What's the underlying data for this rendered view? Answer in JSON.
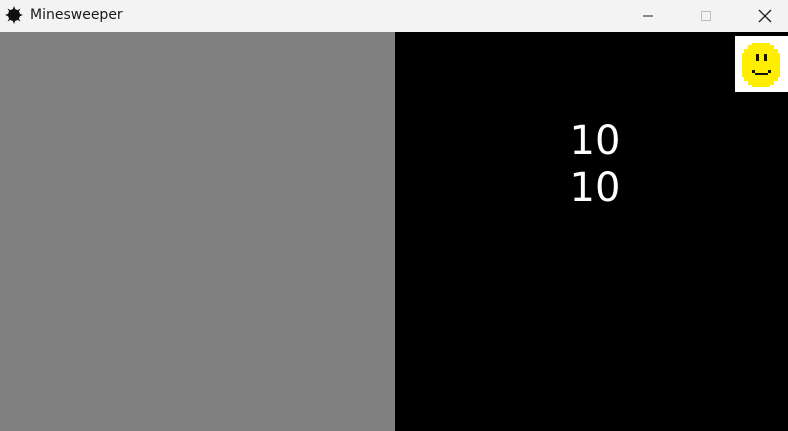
{
  "window": {
    "title": "Minesweeper",
    "icon": "mine-icon",
    "controls": [
      "minimize-icon",
      "maximize-icon",
      "close-icon"
    ]
  },
  "board": {
    "color": "#808080"
  },
  "panel": {
    "counter_top": "10",
    "counter_bottom": "10",
    "smiley": "smiley-face-icon",
    "smiley_color": "#ffee00"
  }
}
